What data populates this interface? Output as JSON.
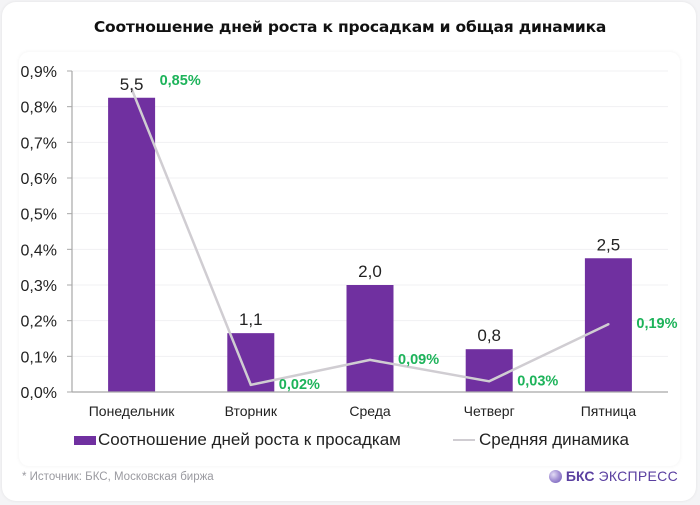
{
  "title": "Соотношение дней роста к просадкам и общая динамика",
  "footer": {
    "source": "* Источник: БКС, Московская биржа",
    "brand_bold": "БКС",
    "brand_rest": "ЭКСПРЕСС"
  },
  "colors": {
    "bar": "#7030a0",
    "line": "#d0cdd2",
    "line_label": "#1db35a",
    "axis": "#a8a8a8"
  },
  "chart_data": {
    "type": "bar",
    "title": "Соотношение дней роста к просадкам и общая динамика",
    "xlabel": "",
    "ylabel": "",
    "grid": true,
    "legend_position": "bottom",
    "categories": [
      "Понедельник",
      "Вторник",
      "Среда",
      "Четверг",
      "Пятница"
    ],
    "y_ticks": [
      "0,0%",
      "0,1%",
      "0,2%",
      "0,3%",
      "0,4%",
      "0,5%",
      "0,6%",
      "0,7%",
      "0,8%",
      "0,9%"
    ],
    "ylim": [
      0,
      0.9
    ],
    "secondary_ylim": [
      0,
      6
    ],
    "series": [
      {
        "name": "Соотношение дней роста к просадкам",
        "type": "bar",
        "axis": "secondary",
        "values": [
          5.5,
          1.1,
          2.0,
          0.8,
          2.5
        ],
        "labels": [
          "5,5",
          "1,1",
          "2,0",
          "0,8",
          "2,5"
        ]
      },
      {
        "name": "Средняя динамика",
        "type": "line",
        "axis": "primary",
        "values": [
          0.85,
          0.02,
          0.09,
          0.03,
          0.19
        ],
        "labels": [
          "0,85%",
          "0,02%",
          "0,09%",
          "0,03%",
          "0,19%"
        ]
      }
    ]
  }
}
